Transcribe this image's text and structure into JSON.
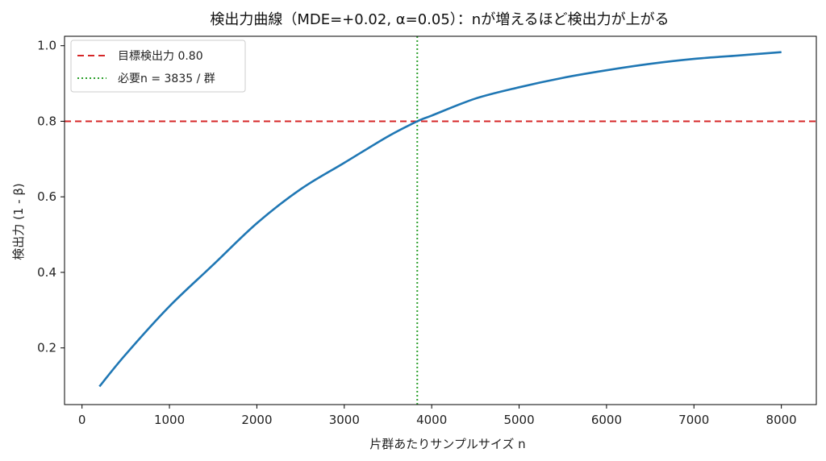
{
  "chart_data": {
    "type": "line",
    "title": "検出力曲線（MDE=+0.02, α=0.05）：nが増えるほど検出力が上がる",
    "xlabel": "片群あたりサンプルサイズ n",
    "ylabel": "検出力 (1 - β)",
    "xlim": [
      -200,
      8400
    ],
    "ylim": [
      0.05,
      1.025
    ],
    "xticks": [
      0,
      1000,
      2000,
      3000,
      4000,
      5000,
      6000,
      7000,
      8000
    ],
    "xtick_labels": [
      "0",
      "1000",
      "2000",
      "3000",
      "4000",
      "5000",
      "6000",
      "7000",
      "8000"
    ],
    "yticks": [
      0.2,
      0.4,
      0.6,
      0.8,
      1.0
    ],
    "ytick_labels": [
      "0.2",
      "0.4",
      "0.6",
      "0.8",
      "1.0"
    ],
    "grid": false,
    "legend_position": "top-left",
    "series": [
      {
        "values_x": [
          200,
          500,
          1000,
          1500,
          2000,
          2500,
          3000,
          3500,
          3835,
          4000,
          4500,
          5000,
          5500,
          6000,
          6500,
          7000,
          7500,
          8000
        ],
        "values_y": [
          0.098,
          0.183,
          0.31,
          0.42,
          0.53,
          0.62,
          0.69,
          0.76,
          0.8,
          0.815,
          0.86,
          0.89,
          0.915,
          0.935,
          0.952,
          0.965,
          0.974,
          0.983
        ],
        "color": "#1f77b4"
      }
    ],
    "reference_lines": [
      {
        "orientation": "horizontal",
        "value": 0.8,
        "label": "目標検出力 0.80",
        "color": "#d62728",
        "style": "dashed"
      },
      {
        "orientation": "vertical",
        "value": 3835,
        "label": "必要n = 3835 / 群",
        "color": "#2ca02c",
        "style": "dotted"
      }
    ]
  }
}
